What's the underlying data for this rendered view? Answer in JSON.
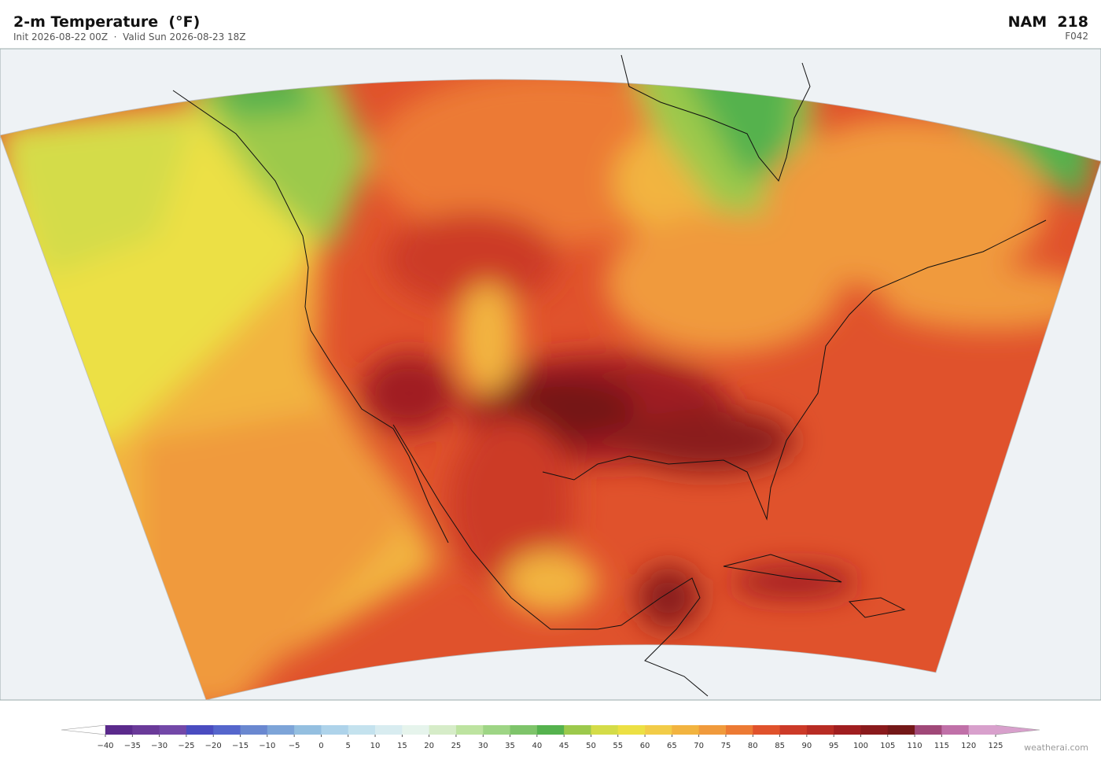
{
  "header": {
    "title": "2-m Temperature  (°F)",
    "subtitle": "Init 2026-08-22 00Z  ·  Valid Sun 2026-08-23 18Z",
    "model": "NAM  218",
    "forecast": "F042"
  },
  "colorbar": {
    "ticks": [
      {
        "value": -40,
        "label": "−40"
      },
      {
        "value": -35,
        "label": "−35"
      },
      {
        "value": -30,
        "label": "−30"
      },
      {
        "value": -25,
        "label": "−25"
      },
      {
        "value": -20,
        "label": "−20"
      },
      {
        "value": -15,
        "label": "−15"
      },
      {
        "value": -10,
        "label": "−10"
      },
      {
        "value": -5,
        "label": "−5"
      },
      0,
      5,
      10,
      15,
      20,
      25,
      30,
      35,
      40,
      45,
      50,
      55,
      60,
      65,
      70,
      75,
      80,
      85,
      90,
      95,
      100,
      105,
      110,
      115,
      120,
      125
    ],
    "colors": [
      "#5b2a8c",
      "#6a3a99",
      "#7348a8",
      "#4a4cc0",
      "#5566cc",
      "#6a88d0",
      "#7da4d8",
      "#94bfe0",
      "#aed3ea",
      "#c4e2ee",
      "#d8ecf0",
      "#e6f4ec",
      "#d6ecc8",
      "#bde3a0",
      "#9ed585",
      "#7ec46a",
      "#55b24e",
      "#9cc94c",
      "#d4dc48",
      "#ece044",
      "#f2cc48",
      "#f2b440",
      "#f09a3c",
      "#ec7a34",
      "#e0522c",
      "#cc3a28",
      "#b82c24",
      "#a01e20",
      "#8a1a1c",
      "#741818",
      "#a04878",
      "#c070a8",
      "#d8a0cc"
    ],
    "under_color": "#ffffff",
    "over_color": "#d8a0cc"
  },
  "credit": "weatherai.com"
}
